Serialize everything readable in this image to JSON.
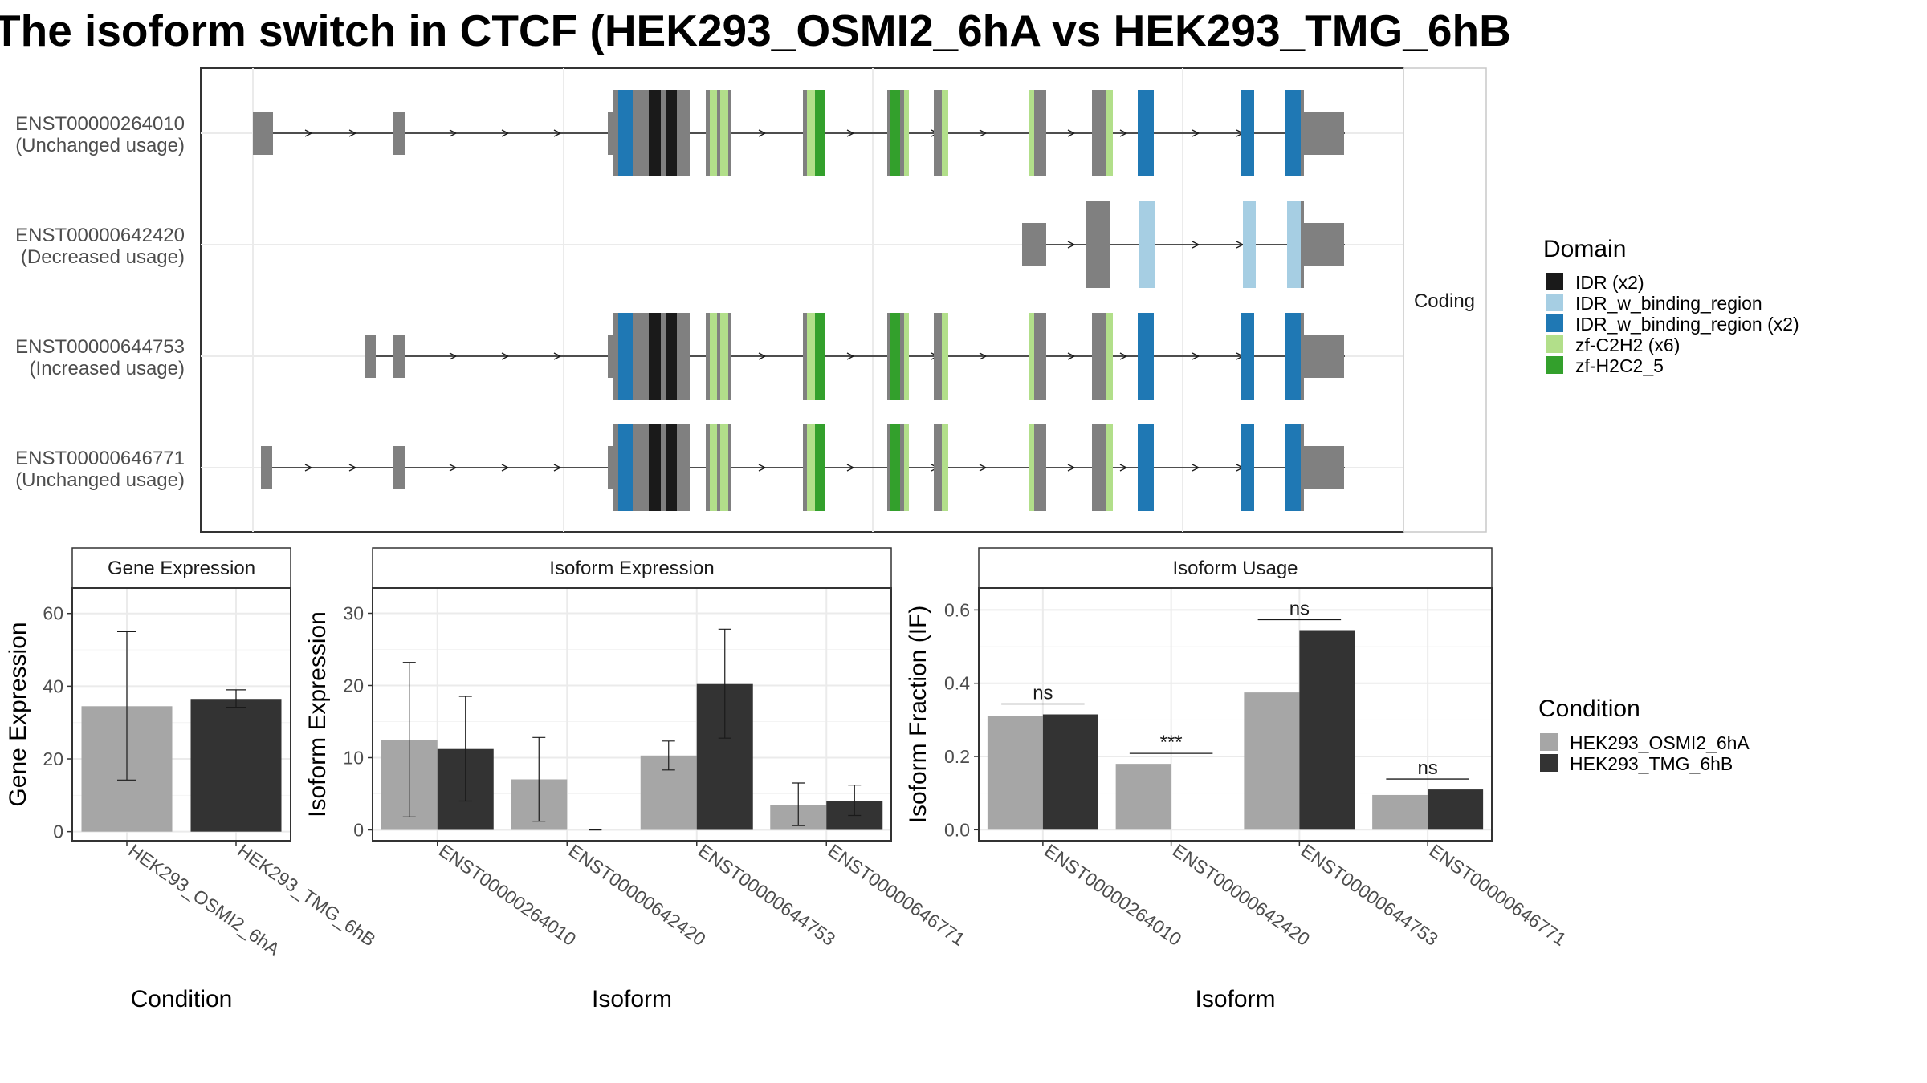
{
  "title": "The isoform switch in CTCF (HEK293_OSMI2_6hA vs HEK293_TMG_6hB",
  "colors": {
    "IDR": "#1a1a1a",
    "IDR_w_binding_region": "#a6cee3",
    "IDR_w_binding_region_x2": "#1f78b4",
    "zf_C2H2": "#b2df8a",
    "zf_H2C2": "#33a02c",
    "exon": "#808080",
    "cond1": "#a6a6a6",
    "cond2": "#333333"
  },
  "structure_panel": {
    "strip_label": "Coding",
    "isoforms": [
      {
        "id": "ENST00000264010",
        "usage": "(Unchanged usage)"
      },
      {
        "id": "ENST00000642420",
        "usage": "(Decreased usage)"
      },
      {
        "id": "ENST00000644753",
        "usage": "(Increased usage)"
      },
      {
        "id": "ENST00000646771",
        "usage": "(Unchanged usage)"
      }
    ]
  },
  "legend_domain": {
    "title": "Domain",
    "items": [
      {
        "label": "IDR (x2)",
        "color_key": "IDR"
      },
      {
        "label": "IDR_w_binding_region",
        "color_key": "IDR_w_binding_region"
      },
      {
        "label": "IDR_w_binding_region (x2)",
        "color_key": "IDR_w_binding_region_x2"
      },
      {
        "label": "zf-C2H2 (x6)",
        "color_key": "zf_C2H2"
      },
      {
        "label": "zf-H2C2_5",
        "color_key": "zf_H2C2"
      }
    ]
  },
  "legend_condition": {
    "title": "Condition",
    "items": [
      "HEK293_OSMI2_6hA",
      "HEK293_TMG_6hB"
    ]
  },
  "chart_data": [
    {
      "type": "bar",
      "title": "Gene Expression",
      "xlabel": "Condition",
      "ylabel": "Gene Expression",
      "categories": [
        "HEK293_OSMI2_6hA",
        "HEK293_TMG_6hB"
      ],
      "values": [
        34.5,
        36.5
      ],
      "error_low": [
        14.2,
        34.2
      ],
      "error_high": [
        55.0,
        39.0
      ],
      "yticks": [
        "0",
        "20",
        "40",
        "60"
      ],
      "ylim": [
        -2.5,
        67
      ]
    },
    {
      "type": "bar",
      "title": "Isoform Expression",
      "xlabel": "Isoform",
      "ylabel": "Isoform Expression",
      "categories": [
        "ENST00000264010",
        "ENST00000642420",
        "ENST00000644753",
        "ENST00000646771"
      ],
      "series": [
        {
          "name": "HEK293_OSMI2_6hA",
          "values": [
            12.5,
            7.0,
            10.3,
            3.5
          ],
          "error_low": [
            1.8,
            1.2,
            8.3,
            0.6
          ],
          "error_high": [
            23.2,
            12.8,
            12.3,
            6.5
          ]
        },
        {
          "name": "HEK293_TMG_6hB",
          "values": [
            11.2,
            0.0,
            20.2,
            4.0
          ],
          "error_low": [
            4.0,
            0.0,
            12.7,
            2.0
          ],
          "error_high": [
            18.5,
            0.0,
            27.8,
            6.2
          ]
        }
      ],
      "yticks": [
        "0",
        "10",
        "20",
        "30"
      ],
      "ylim": [
        -1.5,
        33.5
      ]
    },
    {
      "type": "bar",
      "title": "Isoform Usage",
      "xlabel": "Isoform",
      "ylabel": "Isoform Fraction (IF)",
      "categories": [
        "ENST00000264010",
        "ENST00000642420",
        "ENST00000644753",
        "ENST00000646771"
      ],
      "series": [
        {
          "name": "HEK293_OSMI2_6hA",
          "values": [
            0.31,
            0.18,
            0.375,
            0.095
          ]
        },
        {
          "name": "HEK293_TMG_6hB",
          "values": [
            0.315,
            0.0,
            0.545,
            0.11
          ]
        }
      ],
      "significance": [
        "ns",
        "***",
        "ns",
        "ns"
      ],
      "yticks": [
        "0.0",
        "0.2",
        "0.4",
        "0.6"
      ],
      "ylim": [
        -0.03,
        0.66
      ]
    }
  ]
}
